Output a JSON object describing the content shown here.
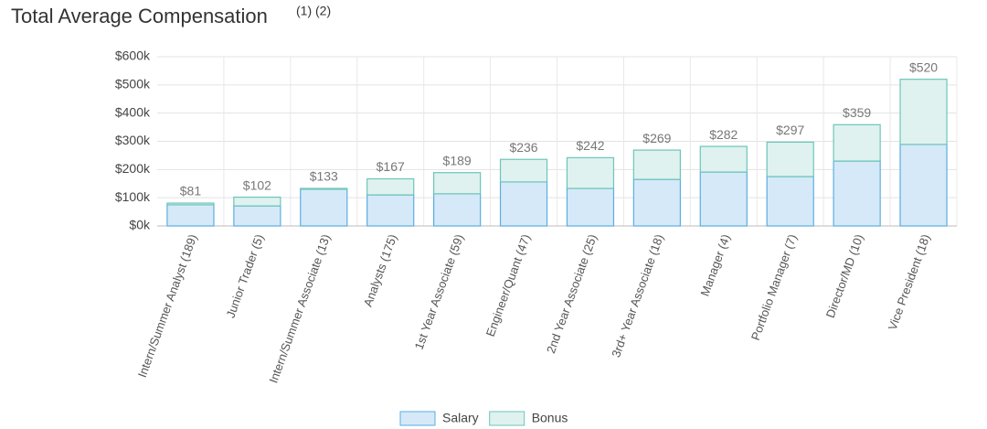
{
  "chart_data": {
    "type": "stacked_bar",
    "title": "Total Average Compensation",
    "title_note": "(1) (2)",
    "categories": [
      "Intern/Summer Analyst (189)",
      "Junior Trader (5)",
      "Intern/Summer Associate (13)",
      "Analysts (175)",
      "1st Year Associate (59)",
      "Engineer/Quant (47)",
      "2nd Year Associate (25)",
      "3rd+ Year Associate (18)",
      "Manager (4)",
      "Portfolio Manager (7)",
      "Director/MD (10)",
      "Vice President (18)"
    ],
    "series": [
      {
        "name": "Salary",
        "color": "#d6e9f8",
        "stroke": "#5aaee0",
        "values": [
          75,
          71,
          130,
          110,
          114,
          156,
          133,
          165,
          191,
          175,
          230,
          289
        ]
      },
      {
        "name": "Bonus",
        "color": "#dff2ef",
        "stroke": "#6cc5b8",
        "values": [
          6,
          31,
          3,
          57,
          75,
          80,
          109,
          104,
          91,
          122,
          129,
          231
        ]
      }
    ],
    "totals": [
      81,
      102,
      133,
      167,
      189,
      236,
      242,
      269,
      282,
      297,
      359,
      520
    ],
    "total_labels": [
      "$81",
      "$102",
      "$133",
      "$167",
      "$189",
      "$236",
      "$242",
      "$269",
      "$282",
      "$297",
      "$359",
      "$520"
    ],
    "ylim": [
      0,
      600
    ],
    "yticks": [
      {
        "value": 0,
        "label": "$0k"
      },
      {
        "value": 100,
        "label": "$100k"
      },
      {
        "value": 200,
        "label": "$200k"
      },
      {
        "value": 300,
        "label": "$300k"
      },
      {
        "value": 400,
        "label": "$400k"
      },
      {
        "value": 500,
        "label": "$500k"
      },
      {
        "value": 600,
        "label": "$600k"
      }
    ],
    "grid": true,
    "legend": "bottom"
  }
}
